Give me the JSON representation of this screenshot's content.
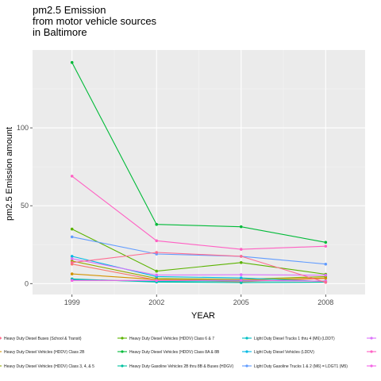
{
  "chart_data": {
    "type": "line",
    "title_lines": [
      "pm2.5 Emission",
      "from motor vehicle sources",
      "in Baltimore"
    ],
    "xlabel": "YEAR",
    "ylabel": "pm2.5 Emission amount",
    "x": [
      1999,
      2002,
      2005,
      2008
    ],
    "x_ticks": [
      "1999",
      "2002",
      "2005",
      "2008"
    ],
    "y_ticks": [
      "0",
      "50",
      "100"
    ],
    "xlim": [
      1997.6,
      2009.4
    ],
    "ylim": [
      -7,
      150
    ],
    "grid": true,
    "legend_position": "bottom",
    "series": [
      {
        "name": "Heavy Duty Diesel Buses (School & Transit)",
        "color": "#F8766D",
        "values": [
          12.5,
          2.3,
          1.2,
          3.3
        ]
      },
      {
        "name": "Heavy Duty Diesel Vehicles (HDDV) Class 2B",
        "color": "#D39200",
        "values": [
          6.2,
          2.6,
          2.2,
          3.6
        ]
      },
      {
        "name": "Heavy Duty Diesel Vehicles (HDDV) Class 3, 4, & 5",
        "color": "#93AA00",
        "values": [
          14.5,
          3.3,
          2.7,
          4.5
        ]
      },
      {
        "name": "Heavy Duty Diesel Vehicles (HDDV) Class 6 & 7",
        "color": "#5BB300",
        "values": [
          35.0,
          8.0,
          13.5,
          6.0
        ]
      },
      {
        "name": "Heavy Duty Diesel Vehicles (HDDV) Class 8A & 8B",
        "color": "#00BA38",
        "values": [
          142.0,
          38.0,
          36.5,
          26.5
        ]
      },
      {
        "name": "Heavy Duty Gasoline Vehicles 2B thru 8B & Buses (HDGV)",
        "color": "#00C19F",
        "values": [
          3.0,
          1.0,
          0.6,
          0.9
        ]
      },
      {
        "name": "Light Duty Diesel Trucks 1 thru 4 (M6) (LDDT)",
        "color": "#00BFC4",
        "values": [
          2.5,
          1.4,
          1.8,
          1.6
        ]
      },
      {
        "name": "Light Duty Diesel Vehicles (LDDV)",
        "color": "#00B9E3",
        "values": [
          17.5,
          4.5,
          3.6,
          1.3
        ]
      },
      {
        "name": "Light Duty Gasoline Trucks 1 & 2 (M6) = LDGT1 (M5)",
        "color": "#619CFF",
        "values": [
          30.0,
          19.0,
          17.5,
          12.5
        ]
      },
      {
        "name": "",
        "color": "#DB72FB",
        "values": [
          16.0,
          5.5,
          5.7,
          5.4
        ]
      },
      {
        "name": "",
        "color": "#FF61C3",
        "values": [
          69.0,
          27.5,
          22.0,
          24.0
        ]
      },
      {
        "name": "",
        "color": "#F365E6",
        "values": [
          2.0,
          2.0,
          2.1,
          1.5
        ]
      },
      {
        "name": "",
        "color": "#FF6C91",
        "values": [
          13.5,
          20.0,
          17.5,
          0.8
        ]
      }
    ]
  }
}
